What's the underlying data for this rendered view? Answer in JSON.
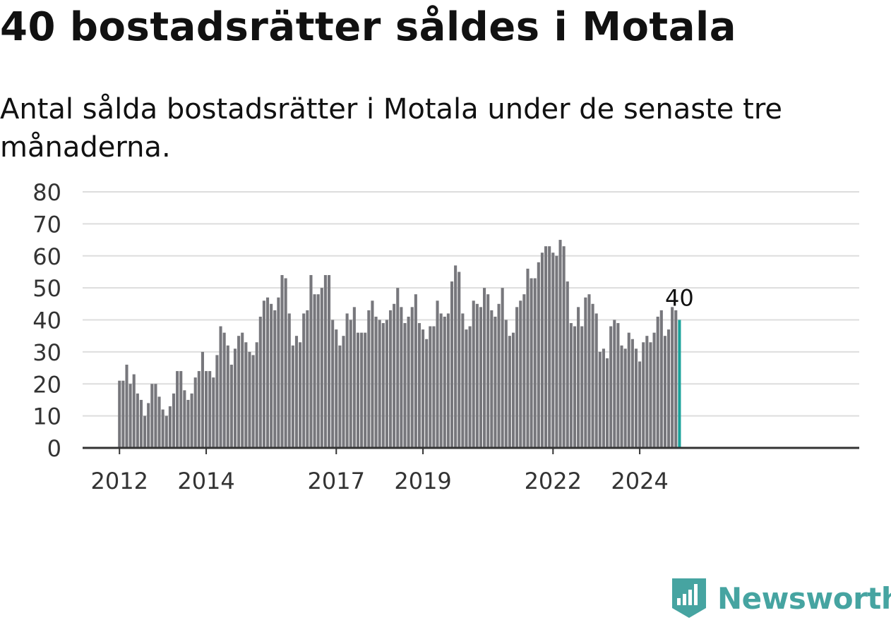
{
  "title": "40 bostadsrätter såldes i Motala",
  "subtitle": "Antal sålda bostadsrätter i Motala under de senaste tre månaderna.",
  "logo": {
    "text": "Newsworthy",
    "icon": "newsworthy-logo-icon"
  },
  "colors": {
    "bar": "#77777c",
    "highlight": "#1aa39b",
    "grid": "#dddddd",
    "axis": "#333333",
    "brand": "#46a4a1"
  },
  "chart_data": {
    "type": "bar",
    "title": "",
    "xlabel": "",
    "ylabel": "",
    "ylim": [
      0,
      80
    ],
    "yticks": [
      0,
      10,
      20,
      30,
      40,
      50,
      60,
      70,
      80
    ],
    "xticks": [
      "2012",
      "2014",
      "2017",
      "2019",
      "2022",
      "2024"
    ],
    "grid": true,
    "highlight_label": "40",
    "values": [
      21,
      21,
      26,
      20,
      23,
      17,
      15,
      10,
      14,
      20,
      20,
      16,
      12,
      10,
      13,
      17,
      24,
      24,
      18,
      15,
      17,
      22,
      24,
      30,
      24,
      24,
      22,
      29,
      38,
      36,
      32,
      26,
      31,
      35,
      36,
      33,
      30,
      29,
      33,
      41,
      46,
      47,
      45,
      43,
      47,
      54,
      53,
      42,
      32,
      35,
      33,
      42,
      43,
      54,
      48,
      48,
      50,
      54,
      54,
      40,
      37,
      32,
      35,
      42,
      40,
      44,
      36,
      36,
      36,
      43,
      46,
      41,
      40,
      39,
      40,
      43,
      45,
      50,
      44,
      39,
      41,
      44,
      48,
      39,
      37,
      34,
      38,
      38,
      46,
      42,
      41,
      42,
      52,
      57,
      55,
      42,
      37,
      38,
      46,
      45,
      44,
      50,
      48,
      43,
      41,
      45,
      50,
      40,
      35,
      36,
      44,
      46,
      48,
      56,
      53,
      53,
      58,
      61,
      63,
      63,
      61,
      60,
      65,
      63,
      52,
      39,
      38,
      44,
      38,
      47,
      48,
      45,
      42,
      30,
      31,
      28,
      38,
      40,
      39,
      32,
      31,
      36,
      34,
      31,
      27,
      33,
      35,
      33,
      36,
      41,
      43,
      35,
      37,
      44,
      43,
      40
    ]
  }
}
